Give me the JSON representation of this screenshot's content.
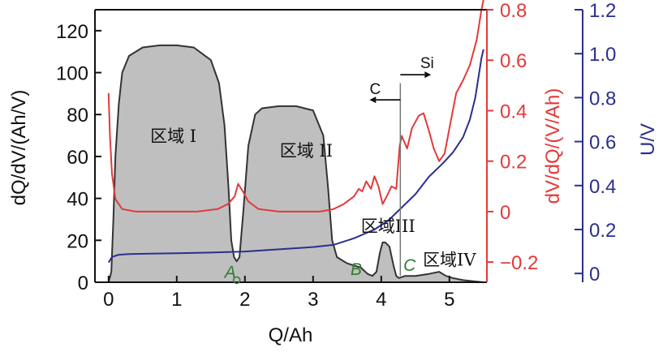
{
  "chart_data": {
    "type": "area",
    "xlabel": "Q/Ah",
    "ylabel_left": "dQ/dV/(Ah/V)",
    "ylabel_right_red": "dV/dQ/(V/Ah)",
    "ylabel_right_blue": "U/V",
    "xlim": [
      -0.2,
      5.55
    ],
    "ylim_left": [
      0,
      130
    ],
    "ylim_red": [
      -0.28,
      0.8
    ],
    "ylim_blue": [
      -0.04,
      1.2
    ],
    "x_ticks": [
      "0",
      "1",
      "2",
      "3",
      "4",
      "5"
    ],
    "y_left_ticks": [
      "0",
      "20",
      "40",
      "60",
      "80",
      "100",
      "120"
    ],
    "y_red_ticks": [
      "−0.2",
      "0",
      "0.2",
      "0.4",
      "0.6",
      "0.8"
    ],
    "y_blue_ticks": [
      "0",
      "0.2",
      "0.4",
      "0.6",
      "0.8",
      "1.0",
      "1.2"
    ],
    "colors": {
      "dqdv": "#333333",
      "fill": "#bfbfbf",
      "dvdq": "#e23a3a",
      "voltage": "#2a2f8f",
      "points": "#2e7d32"
    },
    "series": [
      {
        "name": "dQ/dV",
        "axis": "left",
        "x": [
          0.0,
          0.04,
          0.07,
          0.1,
          0.15,
          0.2,
          0.3,
          0.5,
          0.75,
          1.0,
          1.25,
          1.5,
          1.62,
          1.7,
          1.76,
          1.8,
          1.84,
          1.88,
          1.92,
          1.98,
          2.05,
          2.15,
          2.25,
          2.5,
          2.75,
          3.0,
          3.15,
          3.22,
          3.28,
          3.35,
          3.5,
          3.7,
          3.8,
          3.87,
          3.93,
          3.98,
          4.02,
          4.06,
          4.12,
          4.18,
          4.22,
          4.26,
          4.35,
          4.5,
          4.7,
          4.85,
          4.95,
          5.05,
          5.2,
          5.35,
          5.5
        ],
        "values": [
          0,
          5,
          30,
          60,
          85,
          100,
          108,
          112,
          113,
          113,
          112,
          106,
          95,
          75,
          45,
          20,
          12,
          10,
          12,
          35,
          65,
          80,
          83,
          84,
          84,
          82,
          70,
          45,
          20,
          12,
          9,
          7,
          4,
          3,
          5,
          14,
          19,
          19,
          17,
          8,
          3,
          2,
          3,
          3,
          4,
          5,
          3,
          2,
          1,
          0.5,
          0
        ]
      },
      {
        "name": "dV/dQ",
        "axis": "red",
        "x": [
          0.0,
          0.02,
          0.05,
          0.1,
          0.2,
          0.4,
          0.7,
          1.0,
          1.3,
          1.6,
          1.75,
          1.85,
          1.9,
          1.97,
          2.05,
          2.2,
          2.5,
          2.8,
          3.1,
          3.3,
          3.45,
          3.6,
          3.67,
          3.72,
          3.78,
          3.85,
          3.9,
          3.96,
          4.02,
          4.08,
          4.15,
          4.22,
          4.27,
          4.3,
          4.38,
          4.45,
          4.55,
          4.62,
          4.7,
          4.77,
          4.85,
          4.93,
          5.0,
          5.1,
          5.2,
          5.3,
          5.4,
          5.47,
          5.5
        ],
        "values": [
          0.47,
          0.3,
          0.15,
          0.05,
          0.01,
          0.0,
          0.0,
          0.0,
          0.0,
          0.01,
          0.03,
          0.06,
          0.11,
          0.08,
          0.04,
          0.01,
          0.0,
          0.0,
          0.0,
          0.01,
          0.03,
          0.06,
          0.09,
          0.08,
          0.12,
          0.09,
          0.14,
          0.1,
          0.03,
          0.06,
          0.1,
          0.09,
          0.26,
          0.3,
          0.25,
          0.33,
          0.38,
          0.39,
          0.32,
          0.25,
          0.2,
          0.23,
          0.33,
          0.47,
          0.52,
          0.58,
          0.68,
          0.8,
          0.84
        ]
      },
      {
        "name": "U",
        "axis": "blue",
        "x": [
          0.0,
          0.05,
          0.15,
          0.3,
          0.6,
          1.0,
          1.5,
          2.0,
          2.5,
          3.0,
          3.3,
          3.6,
          3.9,
          4.1,
          4.2,
          4.3,
          4.5,
          4.7,
          4.9,
          5.05,
          5.2,
          5.3,
          5.38,
          5.43,
          5.47,
          5.5
        ],
        "values": [
          0.05,
          0.075,
          0.085,
          0.088,
          0.09,
          0.092,
          0.095,
          0.1,
          0.11,
          0.12,
          0.13,
          0.16,
          0.2,
          0.24,
          0.27,
          0.3,
          0.36,
          0.44,
          0.5,
          0.55,
          0.62,
          0.7,
          0.8,
          0.9,
          0.98,
          1.02
        ]
      }
    ],
    "region_labels": [
      {
        "text": "区域 I",
        "x": 0.95,
        "y": 67
      },
      {
        "text": "区域 II",
        "x": 2.9,
        "y": 60
      },
      {
        "text": "区域III",
        "x": 4.1,
        "y": 24
      },
      {
        "text": "区域IV",
        "x": 5.0,
        "y": 8
      }
    ],
    "points": [
      {
        "label": "A",
        "x": 1.88,
        "y": 1.0
      },
      {
        "label": "B",
        "x": 3.87,
        "y": 3.0
      },
      {
        "label": "C",
        "x": 4.29,
        "y": 3.0
      }
    ],
    "annotations": {
      "carbon": "C",
      "silicon": "Si",
      "divider_x": 4.28
    }
  }
}
